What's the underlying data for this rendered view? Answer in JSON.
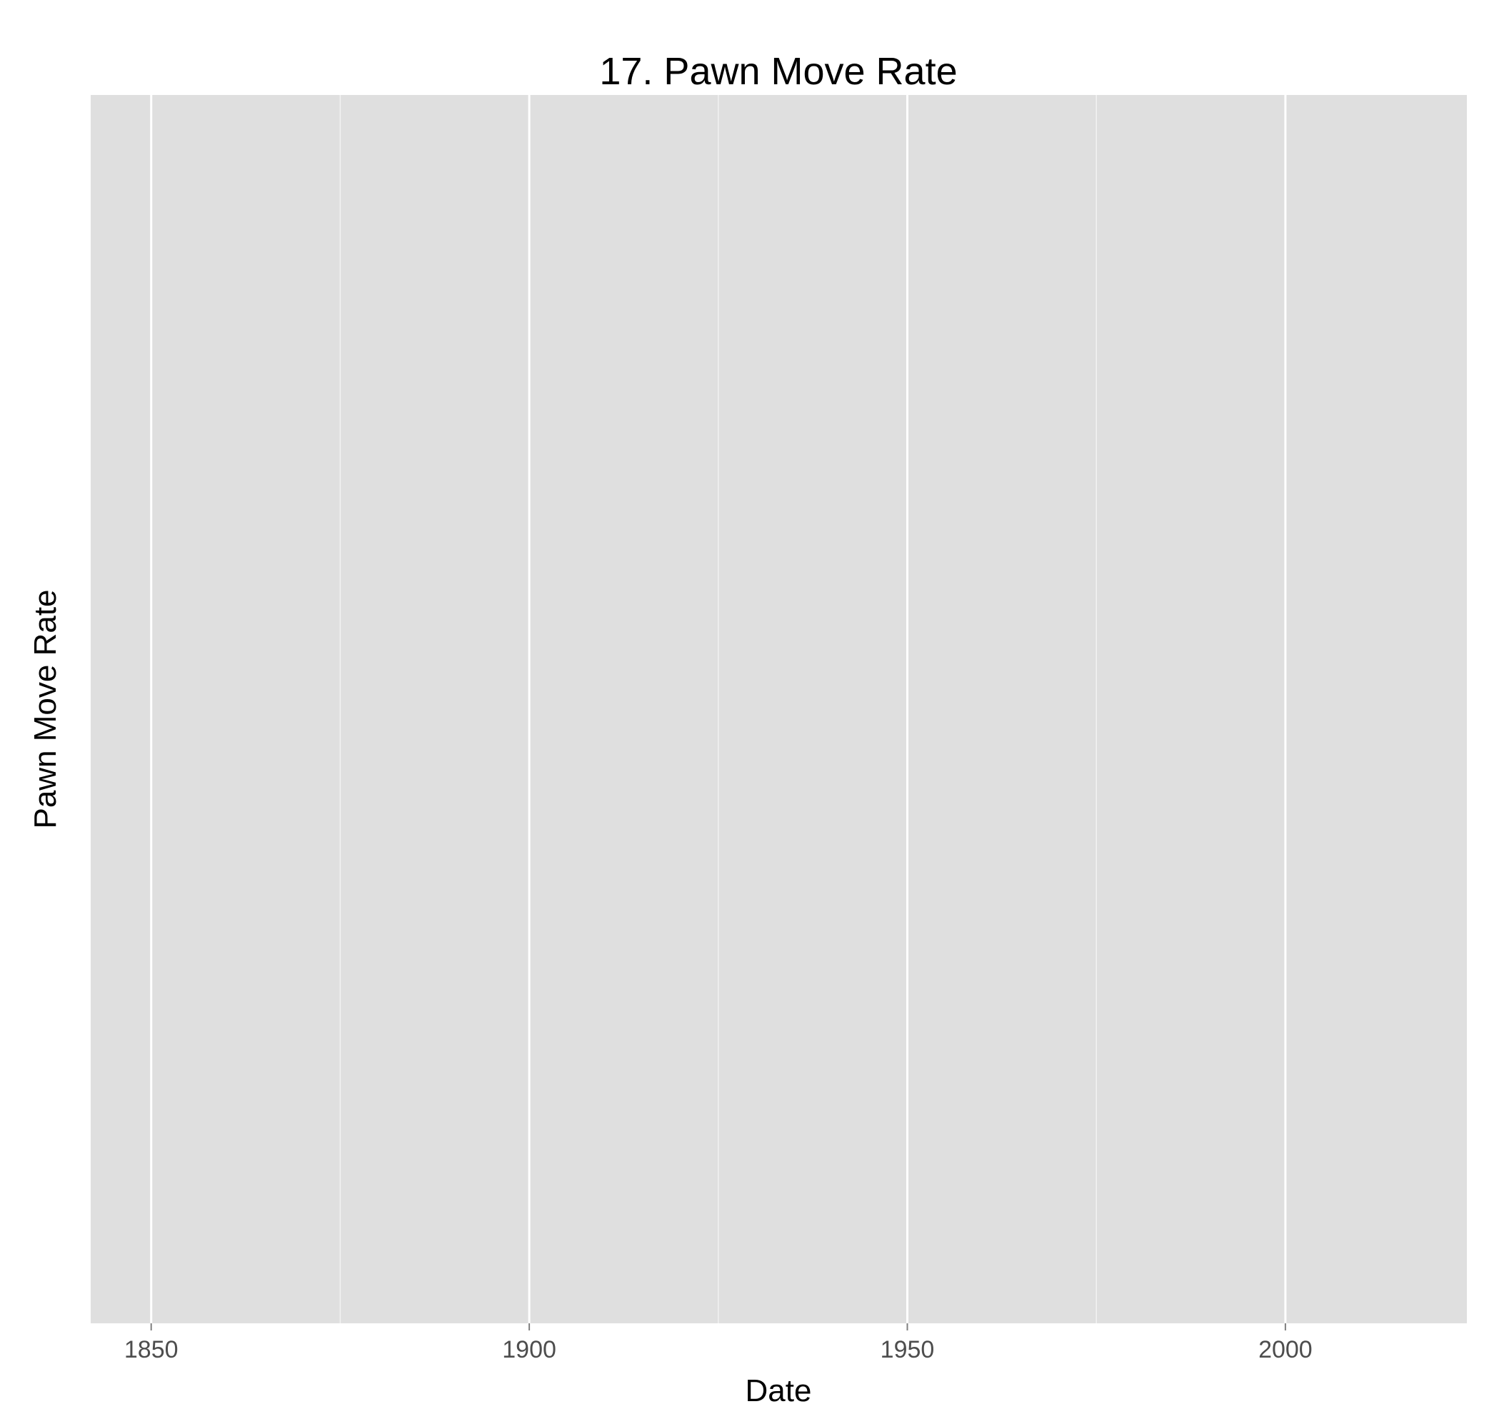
{
  "chart_data": {
    "type": "line",
    "title": "17. Pawn Move Rate",
    "xlabel": "Date",
    "ylabel": "Pawn Move Rate",
    "xlim": [
      1842,
      2024
    ],
    "x_ticks": [
      1850,
      1900,
      1950,
      2000
    ],
    "x_minor_ticks": [
      1875,
      1925,
      1975
    ],
    "y_ticks": [],
    "series": [],
    "grid": true,
    "legend": "none",
    "colors": {
      "panel_background": "#dfdfdf",
      "grid_major": "#ffffff",
      "grid_minor": "#f2f2f2",
      "tick_label": "#4d4d4d",
      "text": "#000000"
    }
  }
}
